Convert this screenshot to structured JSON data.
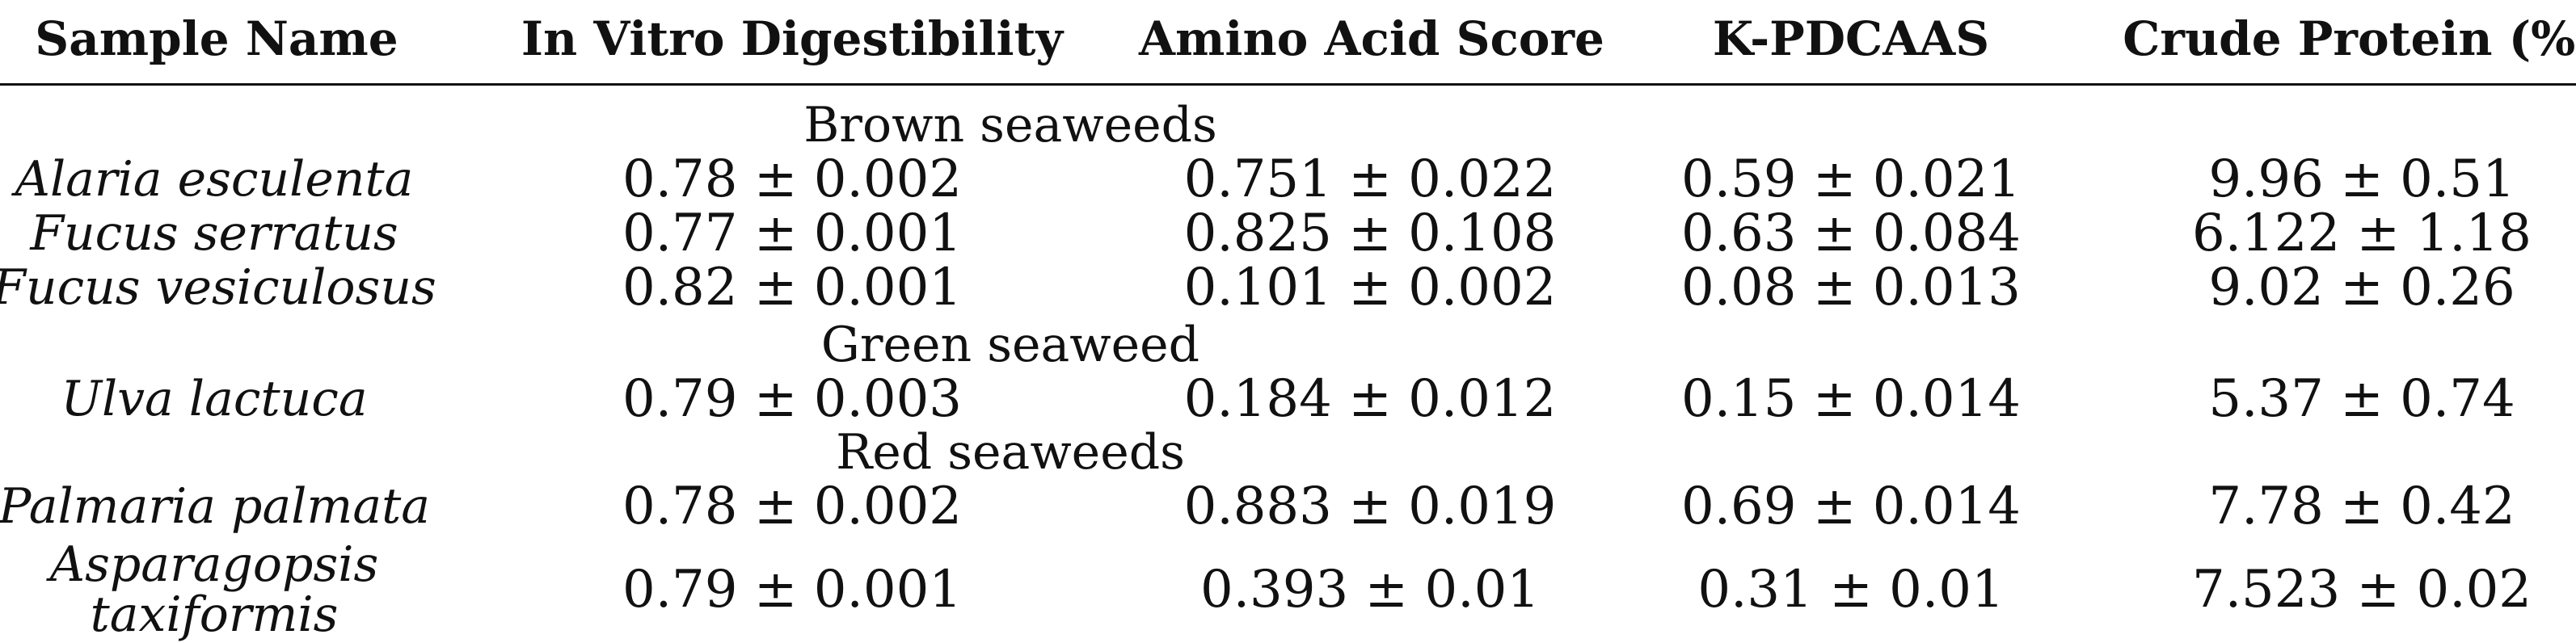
{
  "header": {
    "sample_name": "Sample Name",
    "in_vitro": "In Vitro Digestibility",
    "amino_acid": "Amino Acid Score",
    "kpdcaas": "K-PDCAAS",
    "crude_protein": "Crude Protein (%)"
  },
  "groups": {
    "brown": "Brown seaweeds",
    "green": "Green seaweed",
    "red": "Red seaweeds"
  },
  "rows": [
    {
      "name": "Alaria esculenta",
      "ivd": "0.78 ± 0.002",
      "aas": "0.751 ± 0.022",
      "kp": "0.59 ± 0.021",
      "cp": "9.96 ± 0.51"
    },
    {
      "name": "Fucus serratus",
      "ivd": "0.77 ± 0.001",
      "aas": "0.825 ± 0.108",
      "kp": "0.63 ± 0.084",
      "cp": "6.122 ± 1.18"
    },
    {
      "name": "Fucus vesiculosus",
      "ivd": "0.82 ± 0.001",
      "aas": "0.101 ± 0.002",
      "kp": "0.08 ± 0.013",
      "cp": "9.02 ± 0.26"
    },
    {
      "name": "Ulva lactuca",
      "ivd": "0.79 ± 0.003",
      "aas": "0.184 ± 0.012",
      "kp": "0.15 ± 0.014",
      "cp": "5.37 ± 0.74"
    },
    {
      "name": "Palmaria palmata",
      "ivd": "0.78 ± 0.002",
      "aas": "0.883 ± 0.019",
      "kp": "0.69 ± 0.014",
      "cp": "7.78 ± 0.42"
    },
    {
      "name_line1": "Asparagopsis",
      "name_line2": "taxiformis",
      "ivd": "0.79 ± 0.001",
      "aas": "0.393 ± 0.01",
      "kp": "0.31 ± 0.01",
      "cp": "7.523 ± 0.02"
    }
  ]
}
